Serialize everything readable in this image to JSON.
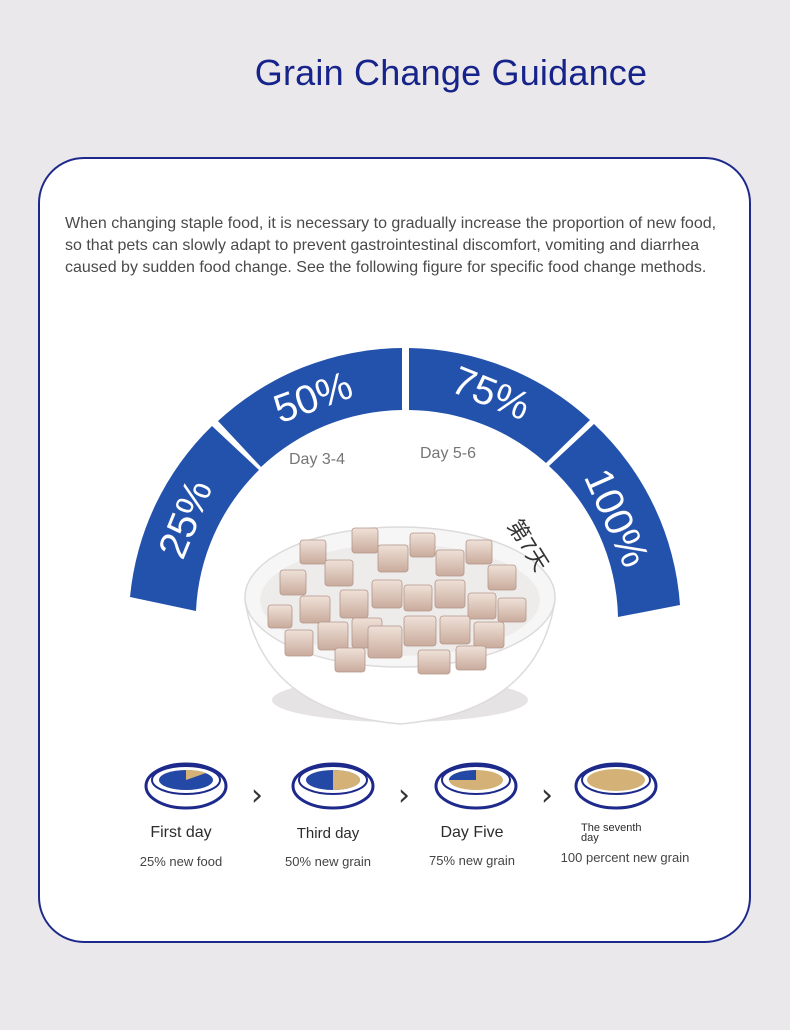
{
  "header": {
    "title": "Grain Change Guidance"
  },
  "intro": "When changing staple food, it is necessary to gradually increase the proportion of new food, so that pets can slowly adapt to prevent gastrointestinal discomfort, vomiting and diarrhea caused by sudden food change. See the following figure for specific food change methods.",
  "arc": {
    "segments": [
      {
        "label": "25%",
        "fraction": 0.25
      },
      {
        "label": "50%",
        "fraction": 0.5
      },
      {
        "label": "75%",
        "fraction": 0.75
      },
      {
        "label": "100%",
        "fraction": 1.0
      }
    ],
    "day_labels": [
      "Day 3-4",
      "Day 5-6"
    ],
    "cn_label": "第7天",
    "color": "#2352ad"
  },
  "steps": [
    {
      "name": "First day",
      "desc": "25% new food",
      "new_fraction": 0.25
    },
    {
      "name": "Third day",
      "desc": "50% new grain",
      "new_fraction": 0.5
    },
    {
      "name": "Day Five",
      "desc": "75% new grain",
      "new_fraction": 0.75
    },
    {
      "name": "The seventh day",
      "desc": "100 percent new grain",
      "new_fraction": 1.0
    }
  ],
  "colors": {
    "navy": "#16238a",
    "new_food": "#d4b277",
    "old_food": "#2448a6"
  },
  "icons": {
    "bowl": "food-bowl-icon",
    "arrow": "chevron-right-icon"
  }
}
